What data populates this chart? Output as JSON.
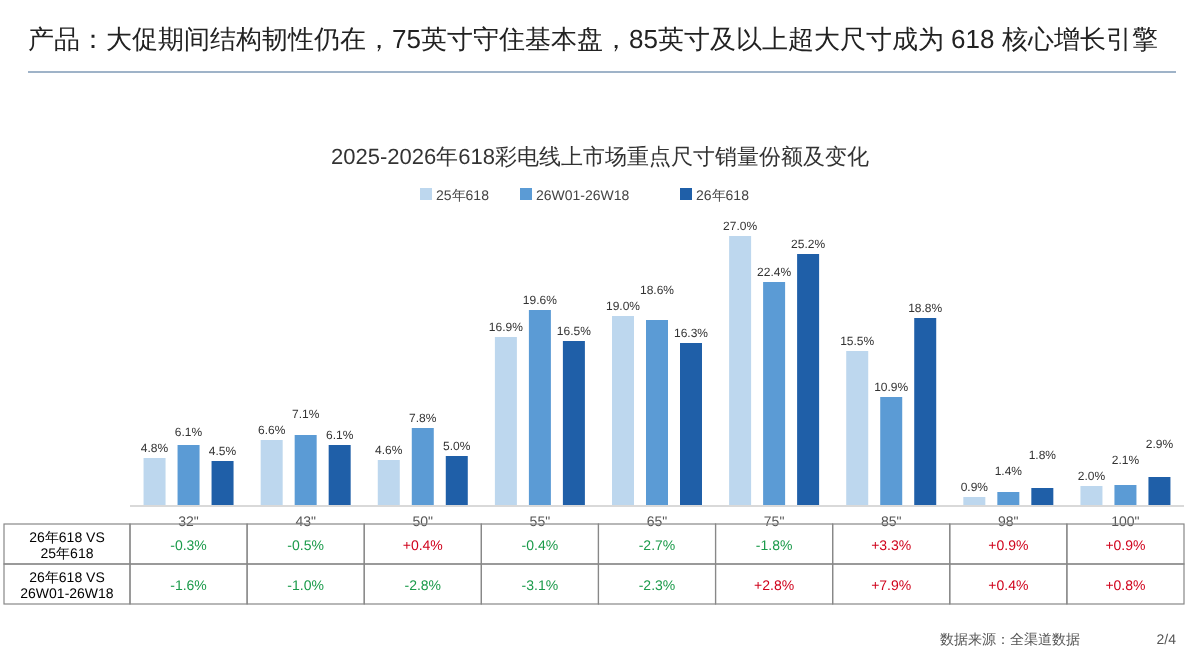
{
  "chart_data": {
    "type": "bar",
    "title": "产品：大促期间结构韧性仍在，75英寸守住基本盘，85英寸及以上超大尺寸成为 618 核心增长引擎",
    "subtitle": "2025-2026年618彩电线上市场重点尺寸销量份额及变化",
    "categories": [
      "32\"",
      "43\"",
      "50\"",
      "55\"",
      "65\"",
      "75\"",
      "85\"",
      "98\"",
      "100\""
    ],
    "series": [
      {
        "name": "25年618",
        "color": "#bdd7ee",
        "values": [
          4.8,
          6.6,
          4.6,
          16.9,
          19.0,
          27.0,
          15.5,
          0.9,
          2.0
        ],
        "value_labels": [
          "4.8%",
          "6.6%",
          "4.6%",
          "16.9%",
          "19.0%",
          "27.0%",
          "15.5%",
          "0.9%",
          "2.0%"
        ]
      },
      {
        "name": "26W01-26W18",
        "color": "#5b9bd5",
        "values": [
          6.1,
          7.1,
          7.8,
          19.6,
          18.6,
          22.4,
          10.9,
          1.4,
          2.1
        ],
        "value_labels": [
          "6.1%",
          "7.1%",
          "7.8%",
          "19.6%",
          "18.6%",
          "22.4%",
          "10.9%",
          "1.4%",
          "2.1%"
        ]
      },
      {
        "name": "26年618",
        "color": "#1f5fa8",
        "values": [
          4.5,
          6.1,
          5.0,
          16.5,
          16.3,
          25.2,
          18.8,
          1.8,
          2.9
        ],
        "value_labels": [
          "4.5%",
          "6.1%",
          "5.0%",
          "16.5%",
          "16.3%",
          "25.2%",
          "18.8%",
          "1.8%",
          "2.9%"
        ]
      }
    ],
    "legend": "top",
    "grid": false,
    "annotations": [
      "26年618 VS 25年618",
      "-0.3%",
      "-0.5%",
      "+0.4%",
      "-0.4%",
      "-2.7%",
      "-1.8%",
      "+3.3%",
      "+0.9%",
      "+0.9%",
      "26年618 VS 26W01-26W18",
      "-1.6%",
      "-1.0%",
      "-2.8%",
      "-3.1%",
      "-2.3%",
      "+2.8%",
      "+7.9%",
      "+0.4%",
      "+0.8%",
      "数据来源：全渠道数据",
      "2/4"
    ]
  }
}
